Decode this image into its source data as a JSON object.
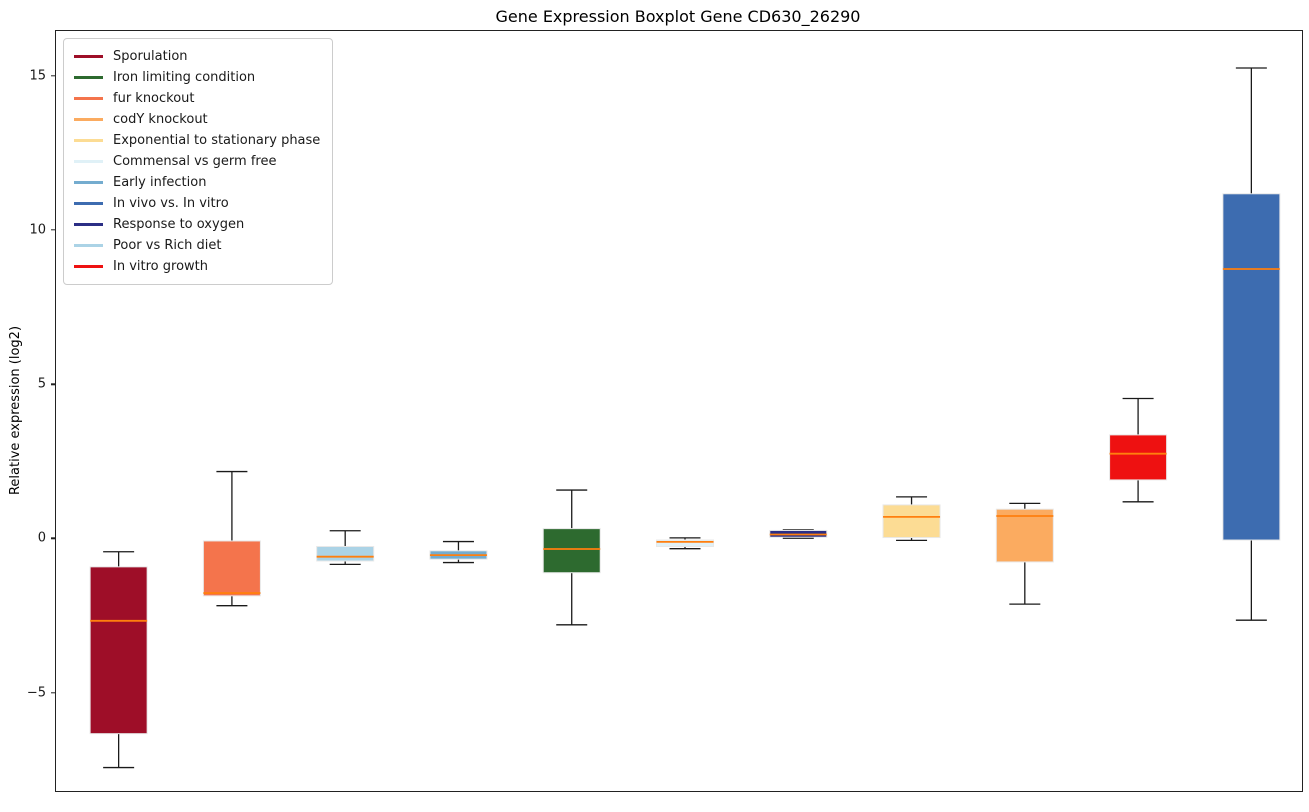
{
  "chart_data": {
    "type": "box",
    "title": "Gene Expression Boxplot Gene CD630_26290",
    "ylabel": "Relative expression (log2)",
    "xlabel": "",
    "ylim": [
      -8.16,
      16.49
    ],
    "yticks": [
      -5,
      0,
      5,
      10,
      15
    ],
    "grid": false,
    "legend_position": "upper-left",
    "median_color": "#ff7f0e",
    "whisker_color": "#1a1a1a",
    "box_edge_color": "#e8e8e8",
    "legend": [
      {
        "label": "Sporulation",
        "color": "#9e0e28"
      },
      {
        "label": "Iron limiting condition",
        "color": "#2d6a2f"
      },
      {
        "label": "fur knockout",
        "color": "#f4744c"
      },
      {
        "label": "codY knockout",
        "color": "#fbab60"
      },
      {
        "label": "Exponential to stationary phase",
        "color": "#fcdc94"
      },
      {
        "label": "Commensal vs germ free",
        "color": "#e0f1f7"
      },
      {
        "label": "Early infection",
        "color": "#74accf"
      },
      {
        "label": "In vivo vs. In vitro",
        "color": "#3d6cb0"
      },
      {
        "label": "Response to oxygen",
        "color": "#2b2e85"
      },
      {
        "label": "Poor vs Rich diet",
        "color": "#abd3e6"
      },
      {
        "label": "In vitro growth",
        "color": "#ee1111"
      }
    ],
    "boxes": [
      {
        "condition": "Sporulation",
        "color": "#9e0e28",
        "whisker_low": -7.4,
        "q1": -6.3,
        "median": -2.64,
        "q3": -0.89,
        "whisker_high": -0.4
      },
      {
        "condition": "fur knockout",
        "color": "#f4744c",
        "whisker_low": -2.15,
        "q1": -1.83,
        "median": -1.74,
        "q3": -0.05,
        "whisker_high": 2.2
      },
      {
        "condition": "Poor vs Rich diet",
        "color": "#abd3e6",
        "whisker_low": -0.81,
        "q1": -0.7,
        "median": -0.56,
        "q3": -0.23,
        "whisker_high": 0.28
      },
      {
        "condition": "Early infection",
        "color": "#74accf",
        "whisker_low": -0.75,
        "q1": -0.64,
        "median": -0.51,
        "q3": -0.37,
        "whisker_high": -0.07
      },
      {
        "condition": "Iron limiting condition",
        "color": "#2d6a2f",
        "whisker_low": -2.77,
        "q1": -1.08,
        "median": -0.31,
        "q3": 0.35,
        "whisker_high": 1.6
      },
      {
        "condition": "Commensal vs germ free",
        "color": "#e0f1f7",
        "whisker_low": -0.3,
        "q1": -0.23,
        "median": -0.08,
        "q3": -0.02,
        "whisker_high": 0.05
      },
      {
        "condition": "Response to oxygen",
        "color": "#2b2e85",
        "whisker_low": 0.04,
        "q1": 0.07,
        "median": 0.16,
        "q3": 0.29,
        "whisker_high": 0.31
      },
      {
        "condition": "Exponential to stationary phase",
        "color": "#fcdc94",
        "whisker_low": -0.03,
        "q1": 0.06,
        "median": 0.73,
        "q3": 1.12,
        "whisker_high": 1.38
      },
      {
        "condition": "codY knockout",
        "color": "#fbab60",
        "whisker_low": -2.1,
        "q1": -0.73,
        "median": 0.76,
        "q3": 0.98,
        "whisker_high": 1.17
      },
      {
        "condition": "In vitro growth",
        "color": "#ee1111",
        "whisker_low": 1.22,
        "q1": 1.93,
        "median": 2.78,
        "q3": 3.39,
        "whisker_high": 4.57
      },
      {
        "condition": "In vivo vs. In vitro",
        "color": "#3d6cb0",
        "whisker_low": -2.62,
        "q1": -0.02,
        "median": 8.77,
        "q3": 11.21,
        "whisker_high": 15.29
      }
    ]
  }
}
